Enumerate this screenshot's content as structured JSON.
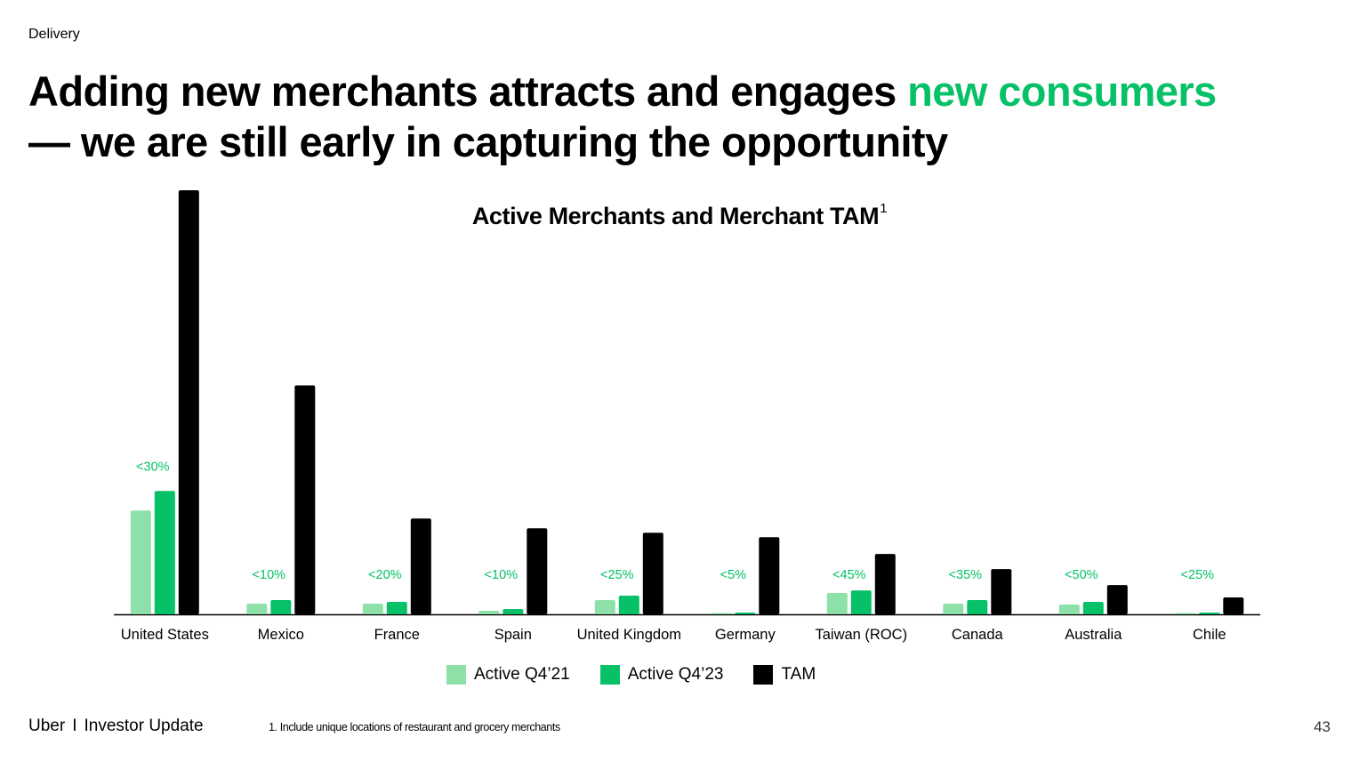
{
  "header": {
    "section": "Delivery",
    "headline_main": "Adding new merchants attracts and engages ",
    "headline_accent": "new consumers",
    "headline_rest": "— we are still early in capturing the opportunity"
  },
  "footer": {
    "brand": "Uber",
    "separator": "I",
    "product": "Investor Update",
    "footnote": "1. Include unique locations of restaurant and grocery merchants",
    "page": "43"
  },
  "colors": {
    "active_q4_21": "#8de0a8",
    "active_q4_23": "#06c167",
    "tam": "#000000",
    "accent": "#06c167"
  },
  "chart_data": {
    "type": "bar",
    "title": "Active Merchants and Merchant TAM",
    "title_footnote": "1",
    "categories": [
      "United States",
      "Mexico",
      "France",
      "Spain",
      "United Kingdom",
      "Germany",
      "Taiwan (ROC)",
      "Canada",
      "Australia",
      "Chile"
    ],
    "series": [
      {
        "name": "Active Q4’21",
        "values": [
          117,
          12,
          12,
          4,
          16,
          0.5,
          24,
          12,
          11,
          0.3
        ]
      },
      {
        "name": "Active Q4’23",
        "values": [
          139,
          16,
          14,
          6,
          21,
          2,
          27,
          16,
          14,
          2
        ]
      },
      {
        "name": "TAM",
        "values": [
          478,
          258,
          108,
          97,
          92,
          87,
          68,
          51,
          33,
          19
        ]
      }
    ],
    "data_labels": [
      "<30%",
      "<10%",
      "<20%",
      "<10%",
      "<25%",
      "<5%",
      "<45%",
      "<35%",
      "<50%",
      "<25%"
    ],
    "ylim": [
      0,
      480
    ],
    "grid": false,
    "legend_position": "bottom-center"
  }
}
